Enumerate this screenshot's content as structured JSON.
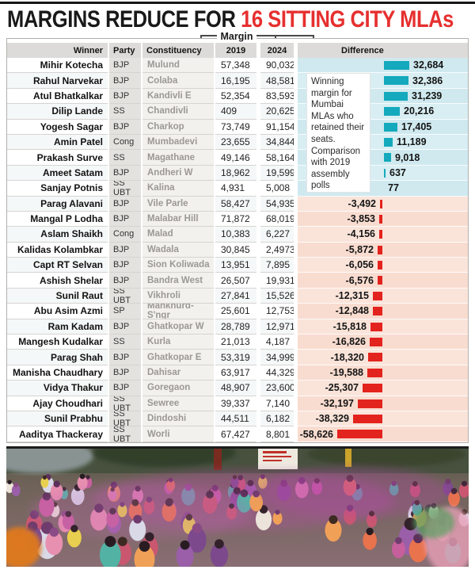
{
  "title": {
    "part1": "MARGINS REDUCE FOR ",
    "part2": "16 SITTING CITY MLAs"
  },
  "table": {
    "margin_group_label": "Margin",
    "headers": {
      "winner": "Winner",
      "party": "Party",
      "constituency": "Constituency",
      "y2019": "2019",
      "y2024": "2024",
      "difference": "Difference"
    },
    "rows": [
      {
        "winner": "Mihir Kotecha",
        "party": "BJP",
        "constituency": "Mulund",
        "y2019": "57,348",
        "y2024": "90,032",
        "diff": "32,684"
      },
      {
        "winner": "Rahul Narvekar",
        "party": "BJP",
        "constituency": "Colaba",
        "y2019": "16,195",
        "y2024": "48,581",
        "diff": "32,386"
      },
      {
        "winner": "Atul Bhatkalkar",
        "party": "BJP",
        "constituency": "Kandivli E",
        "y2019": "52,354",
        "y2024": "83,593",
        "diff": "31,239"
      },
      {
        "winner": "Dilip Lande",
        "party": "SS",
        "constituency": "Chandivli",
        "y2019": "409",
        "y2024": "20,625",
        "diff": "20,216"
      },
      {
        "winner": "Yogesh Sagar",
        "party": "BJP",
        "constituency": "Charkop",
        "y2019": "73,749",
        "y2024": "91,154",
        "diff": "17,405"
      },
      {
        "winner": "Amin Patel",
        "party": "Cong",
        "constituency": "Mumbadevi",
        "y2019": "23,655",
        "y2024": "34,844",
        "diff": "11,189"
      },
      {
        "winner": "Prakash Surve",
        "party": "SS",
        "constituency": "Magathane",
        "y2019": "49,146",
        "y2024": "58,164",
        "diff": "9,018"
      },
      {
        "winner": "Ameet Satam",
        "party": "BJP",
        "constituency": "Andheri W",
        "y2019": "18,962",
        "y2024": "19,599",
        "diff": "637"
      },
      {
        "winner": "Sanjay Potnis",
        "party": "SS UBT",
        "constituency": "Kalina",
        "y2019": "4,931",
        "y2024": "5,008",
        "diff": "77"
      },
      {
        "winner": "Parag Alavani",
        "party": "BJP",
        "constituency": "Vile Parle",
        "y2019": "58,427",
        "y2024": "54,935",
        "diff": "-3,492"
      },
      {
        "winner": "Mangal P Lodha",
        "party": "BJP",
        "constituency": "Malabar Hill",
        "y2019": "71,872",
        "y2024": "68,019",
        "diff": "-3,853"
      },
      {
        "winner": "Aslam Shaikh",
        "party": "Cong",
        "constituency": "Malad",
        "y2019": "10,383",
        "y2024": "6,227",
        "diff": "-4,156"
      },
      {
        "winner": "Kalidas Kolambkar",
        "party": "BJP",
        "constituency": "Wadala",
        "y2019": "30,845",
        "y2024": "2,4973",
        "diff": "-5,872"
      },
      {
        "winner": "Capt RT Selvan",
        "party": "BJP",
        "constituency": "Sion Koliwada",
        "y2019": "13,951",
        "y2024": "7,895",
        "diff": "-6,056"
      },
      {
        "winner": "Ashish Shelar",
        "party": "BJP",
        "constituency": "Bandra West",
        "y2019": "26,507",
        "y2024": "19,931",
        "diff": "-6,576"
      },
      {
        "winner": "Sunil Raut",
        "party": "SS UBT",
        "constituency": "Vikhroli",
        "y2019": "27,841",
        "y2024": "15,526",
        "diff": "-12,315"
      },
      {
        "winner": "Abu Asim Azmi",
        "party": "SP",
        "constituency": "Mankhurd-S'ngr",
        "y2019": "25,601",
        "y2024": "12,753",
        "diff": "-12,848"
      },
      {
        "winner": "Ram Kadam",
        "party": "BJP",
        "constituency": "Ghatkopar W",
        "y2019": "28,789",
        "y2024": "12,971",
        "diff": "-15,818"
      },
      {
        "winner": "Mangesh Kudalkar",
        "party": "SS",
        "constituency": "Kurla",
        "y2019": "21,013",
        "y2024": "4,187",
        "diff": "-16,826"
      },
      {
        "winner": "Parag Shah",
        "party": "BJP",
        "constituency": "Ghatkopar E",
        "y2019": "53,319",
        "y2024": "34,999",
        "diff": "-18,320"
      },
      {
        "winner": "Manisha Chaudhary",
        "party": "BJP",
        "constituency": "Dahisar",
        "y2019": "63,917",
        "y2024": "44,329",
        "diff": "-19,588"
      },
      {
        "winner": "Vidya Thakur",
        "party": "BJP",
        "constituency": "Goregaon",
        "y2019": "48,907",
        "y2024": "23,600",
        "diff": "-25,307"
      },
      {
        "winner": "Ajay Choudhari",
        "party": "SS UBT",
        "constituency": "Sewree",
        "y2019": "39,337",
        "y2024": "7,140",
        "diff": "-32,197"
      },
      {
        "winner": "Sunil Prabhu",
        "party": "SS UBT",
        "constituency": "Dindoshi",
        "y2019": "44,511",
        "y2024": "6,182",
        "diff": "-38,329"
      },
      {
        "winner": "Aaditya Thackeray",
        "party": "SS UBT",
        "constituency": "Worli",
        "y2019": "67,427",
        "y2024": "8,801",
        "diff": "-58,626"
      }
    ]
  },
  "annotation": {
    "text": "Winning margin for Mumbai MLAs who retained their seats. Comparison with 2019 assembly polls"
  },
  "colors": {
    "headline_red": "#e62f2f",
    "positive_bar": "#14a9bc",
    "negative_bar": "#e3231d",
    "positive_band": "#cfe9ef",
    "negative_band": "#f8dcd0"
  },
  "chart_data": {
    "type": "bar",
    "title": "MARGINS REDUCE FOR 16 SITTING CITY MLAs",
    "note": "Winning margin for Mumbai MLAs who retained their seats. Comparison with 2019 assembly polls",
    "orientation": "horizontal",
    "categories": [
      "Mihir Kotecha",
      "Rahul Narvekar",
      "Atul Bhatkalkar",
      "Dilip Lande",
      "Yogesh Sagar",
      "Amin Patel",
      "Prakash Surve",
      "Ameet Satam",
      "Sanjay Potnis",
      "Parag Alavani",
      "Mangal P Lodha",
      "Aslam Shaikh",
      "Kalidas Kolambkar",
      "Capt RT Selvan",
      "Ashish Shelar",
      "Sunil Raut",
      "Abu Asim Azmi",
      "Ram Kadam",
      "Mangesh Kudalkar",
      "Parag Shah",
      "Manisha Chaudhary",
      "Vidya Thakur",
      "Ajay Choudhari",
      "Sunil Prabhu",
      "Aaditya Thackeray"
    ],
    "parties": [
      "BJP",
      "BJP",
      "BJP",
      "SS",
      "BJP",
      "Cong",
      "SS",
      "BJP",
      "SS UBT",
      "BJP",
      "BJP",
      "Cong",
      "BJP",
      "BJP",
      "BJP",
      "SS UBT",
      "SP",
      "BJP",
      "SS",
      "BJP",
      "BJP",
      "BJP",
      "SS UBT",
      "SS UBT",
      "SS UBT"
    ],
    "constituencies": [
      "Mulund",
      "Colaba",
      "Kandivli E",
      "Chandivli",
      "Charkop",
      "Mumbadevi",
      "Magathane",
      "Andheri W",
      "Kalina",
      "Vile Parle",
      "Malabar Hill",
      "Malad",
      "Wadala",
      "Sion Koliwada",
      "Bandra West",
      "Vikhroli",
      "Mankhurd-S'ngr",
      "Ghatkopar W",
      "Kurla",
      "Ghatkopar E",
      "Dahisar",
      "Goregaon",
      "Sewree",
      "Dindoshi",
      "Worli"
    ],
    "series": [
      {
        "name": "Margin 2019",
        "values": [
          57348,
          16195,
          52354,
          409,
          73749,
          23655,
          49146,
          18962,
          4931,
          58427,
          71872,
          10383,
          30845,
          13951,
          26507,
          27841,
          25601,
          28789,
          21013,
          53319,
          63917,
          48907,
          39337,
          44511,
          67427
        ]
      },
      {
        "name": "Margin 2024",
        "values": [
          90032,
          48581,
          83593,
          20625,
          91154,
          34844,
          58164,
          19599,
          5008,
          54935,
          68019,
          6227,
          24973,
          7895,
          19931,
          15526,
          12753,
          12971,
          4187,
          34999,
          44329,
          23600,
          7140,
          6182,
          8801
        ]
      },
      {
        "name": "Difference",
        "values": [
          32684,
          32386,
          31239,
          20216,
          17405,
          11189,
          9018,
          637,
          77,
          -3492,
          -3853,
          -4156,
          -5872,
          -6056,
          -6576,
          -12315,
          -12848,
          -15818,
          -16826,
          -18320,
          -19588,
          -25307,
          -32197,
          -38329,
          -58626
        ]
      }
    ],
    "positive_color": "#14a9bc",
    "negative_color": "#e3231d",
    "legend_position": "none",
    "grid": false
  }
}
